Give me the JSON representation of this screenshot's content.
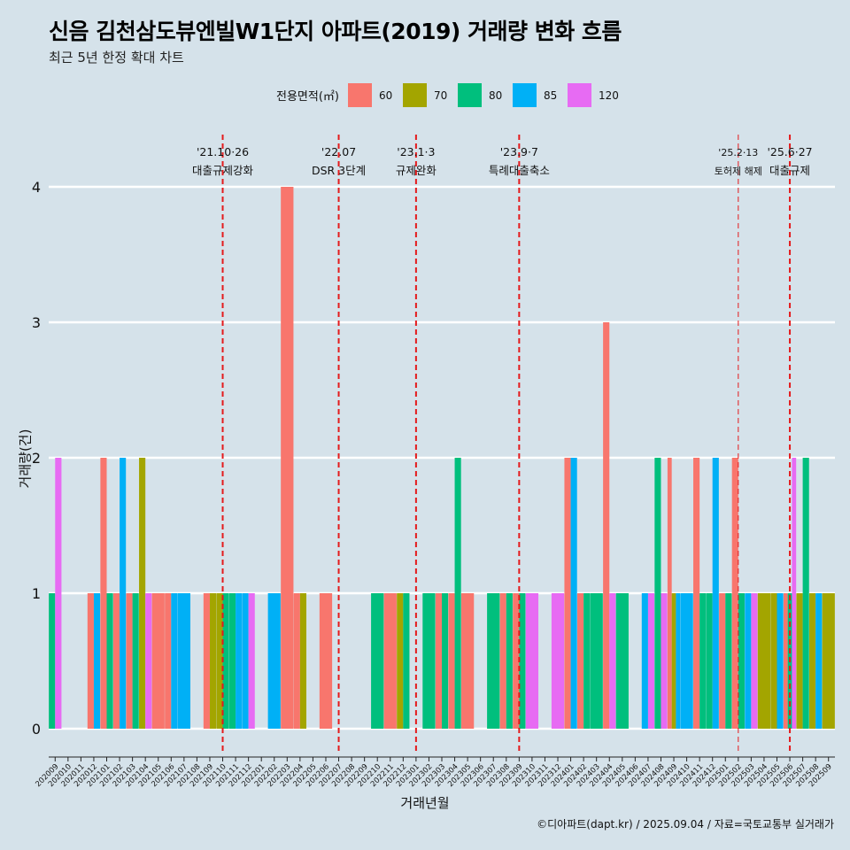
{
  "title": "신음 김천삼도뷰엔빌W1단지 아파트(2019) 거래량 변화 흐름",
  "subtitle": "최근 5년 한정 확대 차트",
  "caption": "©디아파트(dapt.kr) / 2025.09.04 / 자료=국토교통부 실거래가",
  "legend": {
    "title": "전용면적(㎡)",
    "items": [
      {
        "label": "60",
        "color": "#f8766d"
      },
      {
        "label": "70",
        "color": "#a3a500"
      },
      {
        "label": "80",
        "color": "#00bf7d"
      },
      {
        "label": "85",
        "color": "#00b0f6"
      },
      {
        "label": "120",
        "color": "#e76bf3"
      }
    ]
  },
  "chart_data": {
    "type": "bar",
    "xlabel": "거래년월",
    "ylabel": "거래량(건)",
    "ylim": [
      0,
      4
    ],
    "yticks": [
      0,
      1,
      2,
      3,
      4
    ],
    "grid": true,
    "legend_position": "top",
    "series_names": [
      "60",
      "70",
      "80",
      "85",
      "120"
    ],
    "categories": [
      "202009",
      "202010",
      "202011",
      "202012",
      "202101",
      "202102",
      "202103",
      "202104",
      "202105",
      "202106",
      "202107",
      "202108",
      "202109",
      "202110",
      "202111",
      "202112",
      "202201",
      "202202",
      "202203",
      "202204",
      "202205",
      "202206",
      "202207",
      "202208",
      "202209",
      "202210",
      "202211",
      "202212",
      "202301",
      "202302",
      "202303",
      "202304",
      "202305",
      "202306",
      "202307",
      "202308",
      "202309",
      "202310",
      "202311",
      "202312",
      "202401",
      "202402",
      "202403",
      "202404",
      "202405",
      "202406",
      "202407",
      "202408",
      "202409",
      "202410",
      "202411",
      "202412",
      "202501",
      "202502",
      "202503",
      "202504",
      "202505",
      "202506",
      "202507",
      "202508",
      "202509"
    ],
    "bars": [
      {
        "month": "202009",
        "values": [
          0,
          0,
          1,
          0,
          2
        ]
      },
      {
        "month": "202012",
        "values": [
          1,
          0,
          0,
          1,
          0
        ]
      },
      {
        "month": "202101",
        "values": [
          2,
          0,
          1,
          0,
          0
        ]
      },
      {
        "month": "202102",
        "values": [
          1,
          0,
          0,
          2,
          0
        ]
      },
      {
        "month": "202103",
        "values": [
          1,
          0,
          1,
          0,
          0
        ]
      },
      {
        "month": "202104",
        "values": [
          0,
          2,
          0,
          0,
          1
        ]
      },
      {
        "month": "202105",
        "values": [
          1,
          0,
          0,
          0,
          0
        ]
      },
      {
        "month": "202106",
        "values": [
          1,
          0,
          0,
          1,
          0
        ]
      },
      {
        "month": "202107",
        "values": [
          0,
          0,
          0,
          1,
          0
        ]
      },
      {
        "month": "202109",
        "values": [
          1,
          1,
          0,
          0,
          0
        ]
      },
      {
        "month": "202110",
        "values": [
          0,
          1,
          1,
          0,
          0
        ]
      },
      {
        "month": "202111",
        "values": [
          0,
          0,
          1,
          1,
          0
        ]
      },
      {
        "month": "202112",
        "values": [
          0,
          0,
          0,
          1,
          1
        ]
      },
      {
        "month": "202202",
        "values": [
          0,
          0,
          0,
          1,
          0
        ]
      },
      {
        "month": "202203",
        "values": [
          4,
          0,
          0,
          0,
          0
        ]
      },
      {
        "month": "202204",
        "values": [
          1,
          1,
          0,
          0,
          0
        ]
      },
      {
        "month": "202206",
        "values": [
          1,
          0,
          0,
          0,
          0
        ]
      },
      {
        "month": "202210",
        "values": [
          0,
          0,
          1,
          0,
          0
        ]
      },
      {
        "month": "202211",
        "values": [
          1,
          0,
          0,
          0,
          0
        ]
      },
      {
        "month": "202212",
        "values": [
          0,
          1,
          1,
          0,
          0
        ]
      },
      {
        "month": "202302",
        "values": [
          0,
          0,
          1,
          0,
          0
        ]
      },
      {
        "month": "202303",
        "values": [
          1,
          0,
          1,
          0,
          0
        ]
      },
      {
        "month": "202304",
        "values": [
          1,
          0,
          2,
          0,
          0
        ]
      },
      {
        "month": "202305",
        "values": [
          1,
          0,
          0,
          0,
          0
        ]
      },
      {
        "month": "202307",
        "values": [
          0,
          0,
          1,
          0,
          0
        ]
      },
      {
        "month": "202308",
        "values": [
          1,
          0,
          1,
          0,
          0
        ]
      },
      {
        "month": "202309",
        "values": [
          1,
          0,
          1,
          0,
          0
        ]
      },
      {
        "month": "202310",
        "values": [
          0,
          0,
          0,
          0,
          1
        ]
      },
      {
        "month": "202312",
        "values": [
          0,
          0,
          0,
          0,
          1
        ]
      },
      {
        "month": "202401",
        "values": [
          2,
          0,
          0,
          2,
          0
        ]
      },
      {
        "month": "202402",
        "values": [
          1,
          0,
          1,
          0,
          0
        ]
      },
      {
        "month": "202403",
        "values": [
          0,
          0,
          1,
          0,
          0
        ]
      },
      {
        "month": "202404",
        "values": [
          3,
          0,
          0,
          0,
          1
        ]
      },
      {
        "month": "202405",
        "values": [
          0,
          0,
          1,
          0,
          0
        ]
      },
      {
        "month": "202407",
        "values": [
          0,
          0,
          0,
          1,
          1
        ]
      },
      {
        "month": "202408",
        "values": [
          0,
          0,
          2,
          0,
          1
        ]
      },
      {
        "month": "202409",
        "values": [
          2,
          1,
          0,
          1,
          0
        ]
      },
      {
        "month": "202410",
        "values": [
          0,
          0,
          0,
          1,
          0
        ]
      },
      {
        "month": "202411",
        "values": [
          2,
          0,
          1,
          0,
          0
        ]
      },
      {
        "month": "202412",
        "values": [
          0,
          0,
          1,
          2,
          0
        ]
      },
      {
        "month": "202501",
        "values": [
          1,
          0,
          1,
          0,
          0
        ]
      },
      {
        "month": "202502",
        "values": [
          2,
          0,
          1,
          0,
          0
        ]
      },
      {
        "month": "202503",
        "values": [
          0,
          0,
          0,
          1,
          1
        ]
      },
      {
        "month": "202504",
        "values": [
          0,
          1,
          0,
          0,
          0
        ]
      },
      {
        "month": "202505",
        "values": [
          0,
          1,
          0,
          1,
          0
        ]
      },
      {
        "month": "202506",
        "values": [
          1,
          0,
          1,
          0,
          2
        ]
      },
      {
        "month": "202507",
        "values": [
          0,
          1,
          2,
          0,
          0
        ]
      },
      {
        "month": "202508",
        "values": [
          0,
          1,
          0,
          1,
          0
        ]
      },
      {
        "month": "202509",
        "values": [
          0,
          1,
          0,
          0,
          0
        ]
      }
    ],
    "annotations": [
      {
        "month": "202110",
        "date": "'21.10·26",
        "text": "대출규제강화",
        "style": "bold"
      },
      {
        "month": "202207",
        "date": "'22.07",
        "text": "DSR 3단계",
        "style": "bold"
      },
      {
        "month": "202301",
        "date": "'23.1·3",
        "text": "규제완화",
        "style": "bold"
      },
      {
        "month": "202309",
        "date": "'23.9·7",
        "text": "특례대출축소",
        "style": "bold"
      },
      {
        "month": "202502",
        "date": "'25.2·13",
        "text": "토허제 해제",
        "style": "thin"
      },
      {
        "month": "202506",
        "date": "'25.6·27",
        "text": "대출규제",
        "style": "bold"
      }
    ]
  }
}
